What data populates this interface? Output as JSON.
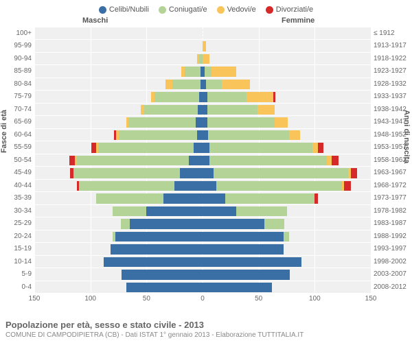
{
  "legend": [
    {
      "label": "Celibi/Nubili",
      "color": "#3a6fa6"
    },
    {
      "label": "Coniugati/e",
      "color": "#b4d396"
    },
    {
      "label": "Vedovi/e",
      "color": "#f9c45a"
    },
    {
      "label": "Divorziati/e",
      "color": "#d62a2a"
    }
  ],
  "headers": {
    "male": "Maschi",
    "female": "Femmine"
  },
  "axis_titles": {
    "left": "Fasce di età",
    "right": "Anni di nascita"
  },
  "x_axis": {
    "max": 150,
    "ticks": [
      150,
      100,
      50,
      0,
      50,
      100,
      150
    ]
  },
  "segment_order": [
    "celibi",
    "coniugati",
    "vedovi",
    "divorziati"
  ],
  "colors": {
    "celibi": "#3a6fa6",
    "coniugati": "#b4d396",
    "vedovi": "#f9c45a",
    "divorziati": "#d62a2a",
    "grid": "#ffffff",
    "plot_bg": "#f0f0f0"
  },
  "rows": [
    {
      "age": "100+",
      "birth": "≤ 1912",
      "m": {
        "celibi": 0,
        "coniugati": 0,
        "vedovi": 0,
        "divorziati": 0
      },
      "f": {
        "celibi": 0,
        "coniugati": 0,
        "vedovi": 0,
        "divorziati": 0
      }
    },
    {
      "age": "95-99",
      "birth": "1913-1917",
      "m": {
        "celibi": 0,
        "coniugati": 0,
        "vedovi": 0,
        "divorziati": 0
      },
      "f": {
        "celibi": 0,
        "coniugati": 0,
        "vedovi": 3,
        "divorziati": 0
      }
    },
    {
      "age": "90-94",
      "birth": "1918-1922",
      "m": {
        "celibi": 0,
        "coniugati": 3,
        "vedovi": 2,
        "divorziati": 0
      },
      "f": {
        "celibi": 0,
        "coniugati": 0,
        "vedovi": 6,
        "divorziati": 0
      }
    },
    {
      "age": "85-89",
      "birth": "1923-1927",
      "m": {
        "celibi": 2,
        "coniugati": 14,
        "vedovi": 3,
        "divorziati": 0
      },
      "f": {
        "celibi": 2,
        "coniugati": 6,
        "vedovi": 22,
        "divorziati": 0
      }
    },
    {
      "age": "80-84",
      "birth": "1928-1932",
      "m": {
        "celibi": 2,
        "coniugati": 25,
        "vedovi": 6,
        "divorziati": 0
      },
      "f": {
        "celibi": 3,
        "coniugati": 14,
        "vedovi": 25,
        "divorziati": 0
      }
    },
    {
      "age": "75-79",
      "birth": "1933-1937",
      "m": {
        "celibi": 3,
        "coniugati": 40,
        "vedovi": 3,
        "divorziati": 0
      },
      "f": {
        "celibi": 4,
        "coniugati": 35,
        "vedovi": 24,
        "divorziati": 2
      }
    },
    {
      "age": "70-74",
      "birth": "1938-1942",
      "m": {
        "celibi": 4,
        "coniugati": 48,
        "vedovi": 3,
        "divorziati": 0
      },
      "f": {
        "celibi": 4,
        "coniugati": 45,
        "vedovi": 15,
        "divorziati": 0
      }
    },
    {
      "age": "65-69",
      "birth": "1943-1947",
      "m": {
        "celibi": 6,
        "coniugati": 60,
        "vedovi": 2,
        "divorziati": 0
      },
      "f": {
        "celibi": 4,
        "coniugati": 60,
        "vedovi": 12,
        "divorziati": 0
      }
    },
    {
      "age": "60-64",
      "birth": "1948-1952",
      "m": {
        "celibi": 5,
        "coniugati": 70,
        "vedovi": 2,
        "divorziati": 2
      },
      "f": {
        "celibi": 5,
        "coniugati": 72,
        "vedovi": 10,
        "divorziati": 0
      }
    },
    {
      "age": "55-59",
      "birth": "1953-1957",
      "m": {
        "celibi": 8,
        "coniugati": 85,
        "vedovi": 2,
        "divorziati": 4
      },
      "f": {
        "celibi": 6,
        "coniugati": 92,
        "vedovi": 5,
        "divorziati": 5
      }
    },
    {
      "age": "50-54",
      "birth": "1958-1962",
      "m": {
        "celibi": 12,
        "coniugati": 100,
        "vedovi": 2,
        "divorziati": 5
      },
      "f": {
        "celibi": 6,
        "coniugati": 105,
        "vedovi": 4,
        "divorziati": 6
      }
    },
    {
      "age": "45-49",
      "birth": "1963-1967",
      "m": {
        "celibi": 20,
        "coniugati": 95,
        "vedovi": 0,
        "divorziati": 3
      },
      "f": {
        "celibi": 10,
        "coniugati": 120,
        "vedovi": 2,
        "divorziati": 6
      }
    },
    {
      "age": "40-44",
      "birth": "1968-1972",
      "m": {
        "celibi": 25,
        "coniugati": 85,
        "vedovi": 0,
        "divorziati": 2
      },
      "f": {
        "celibi": 12,
        "coniugati": 112,
        "vedovi": 2,
        "divorziati": 6
      }
    },
    {
      "age": "35-39",
      "birth": "1973-1977",
      "m": {
        "celibi": 35,
        "coniugati": 60,
        "vedovi": 0,
        "divorziati": 0
      },
      "f": {
        "celibi": 20,
        "coniugati": 80,
        "vedovi": 0,
        "divorziati": 3
      }
    },
    {
      "age": "30-34",
      "birth": "1978-1982",
      "m": {
        "celibi": 50,
        "coniugati": 30,
        "vedovi": 0,
        "divorziati": 0
      },
      "f": {
        "celibi": 30,
        "coniugati": 45,
        "vedovi": 0,
        "divorziati": 0
      }
    },
    {
      "age": "25-29",
      "birth": "1983-1987",
      "m": {
        "celibi": 65,
        "coniugati": 8,
        "vedovi": 0,
        "divorziati": 0
      },
      "f": {
        "celibi": 55,
        "coniugati": 18,
        "vedovi": 0,
        "divorziati": 0
      }
    },
    {
      "age": "20-24",
      "birth": "1988-1992",
      "m": {
        "celibi": 78,
        "coniugati": 2,
        "vedovi": 0,
        "divorziati": 0
      },
      "f": {
        "celibi": 72,
        "coniugati": 5,
        "vedovi": 0,
        "divorziati": 0
      }
    },
    {
      "age": "15-19",
      "birth": "1993-1997",
      "m": {
        "celibi": 82,
        "coniugati": 0,
        "vedovi": 0,
        "divorziati": 0
      },
      "f": {
        "celibi": 72,
        "coniugati": 0,
        "vedovi": 0,
        "divorziati": 0
      }
    },
    {
      "age": "10-14",
      "birth": "1998-2002",
      "m": {
        "celibi": 88,
        "coniugati": 0,
        "vedovi": 0,
        "divorziati": 0
      },
      "f": {
        "celibi": 88,
        "coniugati": 0,
        "vedovi": 0,
        "divorziati": 0
      }
    },
    {
      "age": "5-9",
      "birth": "2003-2007",
      "m": {
        "celibi": 72,
        "coniugati": 0,
        "vedovi": 0,
        "divorziati": 0
      },
      "f": {
        "celibi": 78,
        "coniugati": 0,
        "vedovi": 0,
        "divorziati": 0
      }
    },
    {
      "age": "0-4",
      "birth": "2008-2012",
      "m": {
        "celibi": 68,
        "coniugati": 0,
        "vedovi": 0,
        "divorziati": 0
      },
      "f": {
        "celibi": 62,
        "coniugati": 0,
        "vedovi": 0,
        "divorziati": 0
      }
    }
  ],
  "footer": {
    "title": "Popolazione per età, sesso e stato civile - 2013",
    "subtitle": "COMUNE DI CAMPODIPIETRA (CB) - Dati ISTAT 1° gennaio 2013 - Elaborazione TUTTITALIA.IT"
  }
}
